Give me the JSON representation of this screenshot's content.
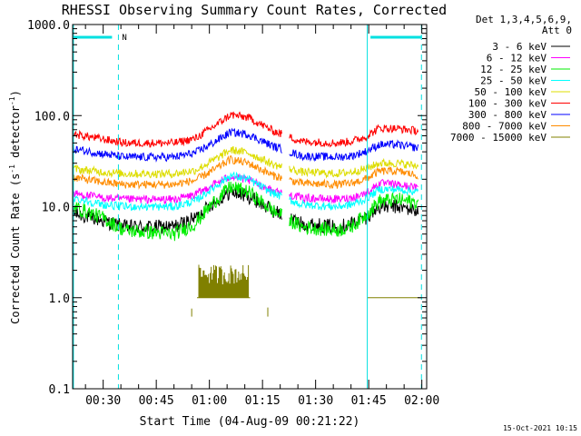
{
  "chart_data": {
    "type": "line",
    "title": "RHESSI Observing Summary Count Rates, Corrected",
    "xlabel": "Start Time (04-Aug-09 00:21:22)",
    "ylabel_main": "Corrected Count Rate (s",
    "ylabel_sup1": "-1",
    "ylabel_mid": " detector",
    "ylabel_sup2": "-1",
    "ylabel_end": ")",
    "yscale": "log",
    "ylim": [
      0.1,
      1000
    ],
    "xlim_minutes": [
      21.37,
      121.37
    ],
    "x_ticks": [
      {
        "minute": 30,
        "label": "00:30"
      },
      {
        "minute": 45,
        "label": "00:45"
      },
      {
        "minute": 60,
        "label": "01:00"
      },
      {
        "minute": 75,
        "label": "01:15"
      },
      {
        "minute": 90,
        "label": "01:30"
      },
      {
        "minute": 105,
        "label": "01:45"
      },
      {
        "minute": 120,
        "label": "02:00"
      }
    ],
    "y_ticks": [
      {
        "value": 1000,
        "label": "1000.0"
      },
      {
        "value": 100,
        "label": "100.0"
      },
      {
        "value": 10,
        "label": "10.0"
      },
      {
        "value": 1,
        "label": "1.0"
      },
      {
        "value": 0.1,
        "label": "0.1"
      }
    ],
    "legend_header": [
      "Det 1,3,4,5,6,9,",
      "Att 0"
    ],
    "legend_placement": "top-right, outside plot",
    "series": [
      {
        "name": "3 - 6 keV",
        "color": "#000000",
        "x": [
          21.4,
          30,
          36,
          50,
          56,
          61,
          66,
          71,
          78,
          86,
          96,
          100,
          104,
          108,
          113,
          119
        ],
        "y": [
          8.5,
          7,
          6,
          6,
          7.5,
          11,
          14.5,
          13,
          9,
          6.5,
          6,
          6.5,
          7.5,
          10,
          10,
          9
        ]
      },
      {
        "name": "6 - 12 keV",
        "color": "#ff00ff",
        "x": [
          21.4,
          30,
          36,
          50,
          56,
          61,
          66,
          71,
          78,
          86,
          96,
          100,
          104,
          108,
          113,
          119
        ],
        "y": [
          14,
          12.5,
          12,
          12,
          13.5,
          17.5,
          21.5,
          19.5,
          15,
          12.5,
          12,
          12.5,
          14,
          18,
          17.5,
          16
        ]
      },
      {
        "name": "12 - 25 keV",
        "color": "#00ee00",
        "x": [
          21.4,
          30,
          36,
          50,
          56,
          61,
          66,
          71,
          78,
          86,
          96,
          100,
          104,
          108,
          113,
          119
        ],
        "y": [
          10,
          7.5,
          5.5,
          5,
          6.5,
          11,
          16.5,
          14.5,
          9,
          6,
          5.5,
          6,
          8,
          11.5,
          12,
          11
        ]
      },
      {
        "name": "25 - 50 keV",
        "color": "#00ffff",
        "x": [
          21.4,
          30,
          36,
          50,
          56,
          61,
          66,
          71,
          78,
          86,
          96,
          100,
          104,
          108,
          113,
          119
        ],
        "y": [
          12.5,
          10.5,
          10,
          10,
          11.5,
          16,
          22,
          20,
          14,
          10.5,
          10,
          10.5,
          12,
          15.5,
          15.5,
          14.5
        ]
      },
      {
        "name": "50 - 100 keV",
        "color": "#dddd00",
        "x": [
          21.4,
          30,
          36,
          50,
          56,
          61,
          66,
          71,
          78,
          86,
          96,
          100,
          104,
          108,
          113,
          119
        ],
        "y": [
          26,
          24,
          23,
          23,
          25,
          32,
          42,
          39,
          29,
          24,
          23,
          24,
          26,
          30,
          30,
          28
        ]
      },
      {
        "name": "100 - 300 keV",
        "color": "#ff0000",
        "x": [
          21.4,
          30,
          36,
          50,
          56,
          61,
          66,
          71,
          78,
          86,
          96,
          100,
          104,
          108,
          113,
          119
        ],
        "y": [
          63,
          55,
          50,
          50,
          56,
          75,
          102,
          95,
          68,
          52,
          50,
          52,
          58,
          73,
          72,
          68
        ]
      },
      {
        "name": "300 - 800 keV",
        "color": "#0000ff",
        "x": [
          21.4,
          30,
          36,
          50,
          56,
          61,
          66,
          71,
          78,
          86,
          96,
          100,
          104,
          108,
          113,
          119
        ],
        "y": [
          43,
          38,
          35,
          35,
          39,
          50,
          66,
          62,
          46,
          36,
          35,
          36,
          40,
          48,
          48,
          44
        ]
      },
      {
        "name": "800 - 7000 keV",
        "color": "#ff8c00",
        "x": [
          21.4,
          30,
          36,
          50,
          56,
          61,
          66,
          71,
          78,
          86,
          96,
          100,
          104,
          108,
          113,
          119
        ],
        "y": [
          21,
          18.5,
          17.5,
          17.5,
          19.5,
          25,
          33,
          30,
          22,
          18,
          17.5,
          18,
          20,
          24.5,
          24.5,
          22
        ]
      },
      {
        "name": "7000 - 15000 keV",
        "color": "#808000",
        "x": [
          57,
          58,
          59,
          60,
          61,
          62,
          63,
          64,
          65,
          66,
          67,
          68,
          69,
          70,
          71,
          104.6,
          108,
          112,
          116,
          119
        ],
        "y": [
          1.0,
          2.2,
          1.0,
          2.2,
          1.0,
          2.2,
          1.0,
          2.2,
          1.0,
          2.2,
          1.0,
          2.2,
          1.0,
          2.2,
          1.0,
          1.0,
          1.0,
          1.0,
          1.0,
          1.0
        ]
      }
    ],
    "attenuator_bars": [
      [
        21.4,
        32.5
      ],
      [
        105.5,
        120.0
      ]
    ],
    "attenuator_label": "N",
    "vertical_lines_minutes": [
      21.6,
      34.3,
      104.6,
      119.9
    ],
    "grid": false
  },
  "footer": {
    "timestamp": "15-Oct-2021 10:15"
  }
}
